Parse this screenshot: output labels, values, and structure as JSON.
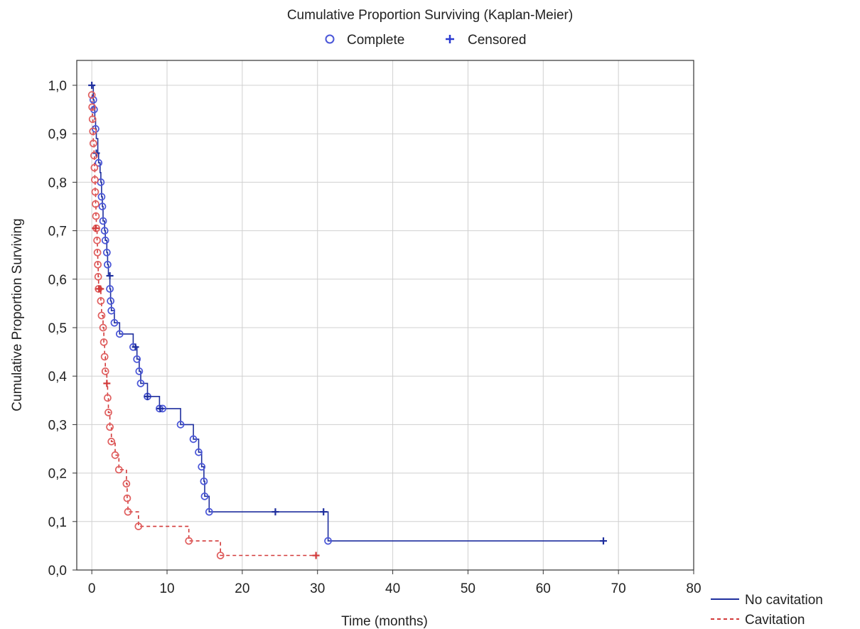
{
  "chart_data": {
    "type": "line",
    "title": "Cumulative Proportion Surviving (Kaplan-Meier)",
    "xlabel": "Time (months)",
    "ylabel": "Cumulative Proportion Surviving",
    "xlim": [
      -2,
      80
    ],
    "ylim": [
      0,
      1.0
    ],
    "xticks": [
      "0",
      "10",
      "20",
      "30",
      "40",
      "50",
      "60",
      "70",
      "80"
    ],
    "yticks": [
      "0,0",
      "0,1",
      "0,2",
      "0,3",
      "0,4",
      "0,5",
      "0,6",
      "0,7",
      "0,8",
      "0,9",
      "1,0"
    ],
    "grid": true,
    "marker_legend": {
      "position": "top",
      "complete_label": "Complete",
      "censored_label": "Censored"
    },
    "series_legend": {
      "position": "bottom-right",
      "items": [
        "No cavitation",
        "Cavitation"
      ]
    },
    "colors": {
      "no_cavitation": "#1f2f9e",
      "no_cavitation_marker": "#4a56d8",
      "cavitation": "#d23a3a",
      "cavitation_marker": "#e06060",
      "grid": "#d0d0d0"
    },
    "series": [
      {
        "name": "No cavitation",
        "style": "solid",
        "steps": [
          [
            0,
            1.0
          ],
          [
            0.2,
            0.97
          ],
          [
            0.3,
            0.95
          ],
          [
            0.4,
            0.93
          ],
          [
            0.5,
            0.91
          ],
          [
            0.6,
            0.89
          ],
          [
            0.8,
            0.86
          ],
          [
            0.9,
            0.84
          ],
          [
            1.1,
            0.82
          ],
          [
            1.2,
            0.8
          ],
          [
            1.3,
            0.77
          ],
          [
            1.4,
            0.75
          ],
          [
            1.5,
            0.72
          ],
          [
            1.7,
            0.7
          ],
          [
            1.8,
            0.68
          ],
          [
            2.0,
            0.655
          ],
          [
            2.1,
            0.63
          ],
          [
            2.2,
            0.61
          ],
          [
            2.4,
            0.58
          ],
          [
            2.5,
            0.555
          ],
          [
            2.6,
            0.535
          ],
          [
            3.0,
            0.51
          ],
          [
            3.7,
            0.487
          ],
          [
            5.5,
            0.46
          ],
          [
            6.0,
            0.435
          ],
          [
            6.3,
            0.41
          ],
          [
            6.5,
            0.385
          ],
          [
            7.4,
            0.358
          ],
          [
            9.0,
            0.333
          ],
          [
            9.4,
            0.333
          ],
          [
            11.8,
            0.3
          ],
          [
            13.5,
            0.27
          ],
          [
            14.2,
            0.243
          ],
          [
            14.6,
            0.213
          ],
          [
            14.9,
            0.183
          ],
          [
            15.0,
            0.152
          ],
          [
            15.6,
            0.12
          ],
          [
            31.4,
            0.06
          ],
          [
            68,
            0.06
          ]
        ],
        "complete": [
          [
            0.2,
            0.97
          ],
          [
            0.3,
            0.95
          ],
          [
            0.5,
            0.91
          ],
          [
            0.9,
            0.84
          ],
          [
            1.2,
            0.8
          ],
          [
            1.3,
            0.77
          ],
          [
            1.4,
            0.75
          ],
          [
            1.5,
            0.72
          ],
          [
            1.7,
            0.7
          ],
          [
            1.8,
            0.68
          ],
          [
            2.0,
            0.655
          ],
          [
            2.1,
            0.63
          ],
          [
            2.4,
            0.58
          ],
          [
            2.5,
            0.555
          ],
          [
            2.6,
            0.535
          ],
          [
            3.0,
            0.51
          ],
          [
            3.7,
            0.487
          ],
          [
            5.5,
            0.46
          ],
          [
            6.0,
            0.435
          ],
          [
            6.3,
            0.41
          ],
          [
            6.5,
            0.385
          ],
          [
            7.4,
            0.358
          ],
          [
            9.0,
            0.333
          ],
          [
            9.4,
            0.333
          ],
          [
            11.8,
            0.3
          ],
          [
            13.5,
            0.27
          ],
          [
            14.2,
            0.243
          ],
          [
            14.6,
            0.213
          ],
          [
            14.9,
            0.183
          ],
          [
            15.0,
            0.152
          ],
          [
            15.6,
            0.12
          ],
          [
            31.4,
            0.06
          ]
        ],
        "censored": [
          [
            0,
            1.0
          ],
          [
            0.6,
            0.86
          ],
          [
            2.4,
            0.607
          ],
          [
            5.8,
            0.46
          ],
          [
            7.4,
            0.358
          ],
          [
            9.1,
            0.333
          ],
          [
            24.4,
            0.12
          ],
          [
            30.8,
            0.12
          ],
          [
            68,
            0.06
          ]
        ]
      },
      {
        "name": "Cavitation",
        "style": "dashed",
        "steps": [
          [
            0,
            0.98
          ],
          [
            0.05,
            0.955
          ],
          [
            0.1,
            0.93
          ],
          [
            0.15,
            0.905
          ],
          [
            0.2,
            0.88
          ],
          [
            0.3,
            0.855
          ],
          [
            0.35,
            0.83
          ],
          [
            0.4,
            0.805
          ],
          [
            0.45,
            0.78
          ],
          [
            0.5,
            0.755
          ],
          [
            0.55,
            0.73
          ],
          [
            0.6,
            0.705
          ],
          [
            0.7,
            0.68
          ],
          [
            0.75,
            0.655
          ],
          [
            0.8,
            0.63
          ],
          [
            0.85,
            0.605
          ],
          [
            0.9,
            0.58
          ],
          [
            1.2,
            0.555
          ],
          [
            1.3,
            0.525
          ],
          [
            1.5,
            0.5
          ],
          [
            1.6,
            0.47
          ],
          [
            1.7,
            0.44
          ],
          [
            1.8,
            0.41
          ],
          [
            2.0,
            0.385
          ],
          [
            2.1,
            0.355
          ],
          [
            2.2,
            0.325
          ],
          [
            2.4,
            0.295
          ],
          [
            2.6,
            0.265
          ],
          [
            3.1,
            0.237
          ],
          [
            3.6,
            0.207
          ],
          [
            4.6,
            0.178
          ],
          [
            4.7,
            0.148
          ],
          [
            4.8,
            0.12
          ],
          [
            6.2,
            0.09
          ],
          [
            12.9,
            0.06
          ],
          [
            17.1,
            0.03
          ],
          [
            29.8,
            0.03
          ]
        ],
        "complete": [
          [
            0,
            0.98
          ],
          [
            0.05,
            0.955
          ],
          [
            0.1,
            0.93
          ],
          [
            0.15,
            0.905
          ],
          [
            0.2,
            0.88
          ],
          [
            0.3,
            0.855
          ],
          [
            0.35,
            0.83
          ],
          [
            0.4,
            0.805
          ],
          [
            0.45,
            0.78
          ],
          [
            0.5,
            0.755
          ],
          [
            0.55,
            0.73
          ],
          [
            0.6,
            0.705
          ],
          [
            0.7,
            0.68
          ],
          [
            0.75,
            0.655
          ],
          [
            0.8,
            0.63
          ],
          [
            0.85,
            0.605
          ],
          [
            0.9,
            0.58
          ],
          [
            1.2,
            0.555
          ],
          [
            1.3,
            0.525
          ],
          [
            1.5,
            0.5
          ],
          [
            1.6,
            0.47
          ],
          [
            1.7,
            0.44
          ],
          [
            1.8,
            0.41
          ],
          [
            2.1,
            0.355
          ],
          [
            2.2,
            0.325
          ],
          [
            2.4,
            0.295
          ],
          [
            2.6,
            0.265
          ],
          [
            3.1,
            0.237
          ],
          [
            3.6,
            0.207
          ],
          [
            4.6,
            0.178
          ],
          [
            4.7,
            0.148
          ],
          [
            4.8,
            0.12
          ],
          [
            6.2,
            0.09
          ],
          [
            12.9,
            0.06
          ],
          [
            17.1,
            0.03
          ]
        ],
        "censored": [
          [
            0.5,
            0.705
          ],
          [
            0.95,
            0.58
          ],
          [
            1.15,
            0.58
          ],
          [
            2.0,
            0.385
          ],
          [
            29.8,
            0.03
          ]
        ]
      }
    ]
  }
}
